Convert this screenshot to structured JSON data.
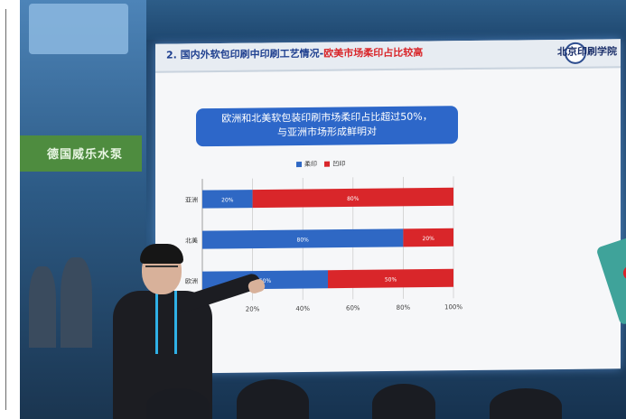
{
  "slide": {
    "title_main": "2. 国内外软包印刷中印刷工艺情况-",
    "title_highlight": "欧美市场柔印占比较高",
    "logo_text": "北京印刷学院",
    "callout_line1": "欧洲和北美软包装印刷市场柔印占比超过50%，",
    "callout_line2": "与亚洲市场形成鲜明对"
  },
  "booth_sign": "德国威乐水泵",
  "colors": {
    "flexo": "#2f68c4",
    "gravure": "#d9262a",
    "callout": "#2d67c9"
  },
  "chart_data": {
    "type": "bar",
    "orientation": "horizontal",
    "stacked": true,
    "categories": [
      "亚洲",
      "北美",
      "欧洲"
    ],
    "series": [
      {
        "name": "柔印",
        "values": [
          20,
          80,
          50
        ],
        "labels": [
          "20%",
          "80%",
          "50%"
        ]
      },
      {
        "name": "凹印",
        "values": [
          80,
          20,
          50
        ],
        "labels": [
          "80%",
          "20%",
          "50%"
        ]
      }
    ],
    "xticks": [
      "20%",
      "40%",
      "60%",
      "80%",
      "100%"
    ],
    "xlim": [
      0,
      100
    ],
    "grid": true,
    "legend": "top"
  }
}
